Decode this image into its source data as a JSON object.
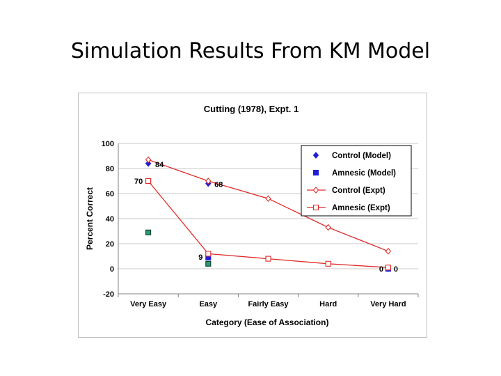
{
  "slide": {
    "title": "Simulation Results From KM Model"
  },
  "chart_data": {
    "type": "line",
    "title": "Cutting (1978), Expt. 1",
    "xlabel": "Category (Ease of Association)",
    "ylabel": "Percent Correct",
    "categories": [
      "Very Easy",
      "Easy",
      "Fairly Easy",
      "Hard",
      "Very Hard"
    ],
    "ylim": [
      -20,
      100
    ],
    "yticks": [
      100,
      80,
      60,
      40,
      20,
      0,
      -20
    ],
    "grid": true,
    "legend_position": "top-right",
    "series": [
      {
        "name": "Control (Model)",
        "kind": "points",
        "marker": "diamond-filled",
        "color": "#1f1fd6",
        "values": [
          84,
          68,
          null,
          null,
          0
        ]
      },
      {
        "name": "Amnesic (Model)",
        "kind": "points",
        "marker": "square-filled",
        "color": "#1f1fd6",
        "values": [
          70,
          9,
          null,
          null,
          0
        ]
      },
      {
        "name": "Control (Expt)",
        "kind": "line",
        "marker": "diamond-open",
        "color": "#e02a2a",
        "values": [
          87,
          70,
          56,
          33,
          14
        ]
      },
      {
        "name": "Amnesic (Expt)",
        "kind": "line",
        "marker": "square-open",
        "color": "#e02a2a",
        "values": [
          70,
          12,
          8,
          4,
          1
        ]
      }
    ],
    "extra_points": {
      "marker": "square-filled",
      "color": "#2e9a6e",
      "stroke": "#0b3d2a",
      "points": [
        {
          "x": "Very Easy",
          "y": 29
        },
        {
          "x": "Easy",
          "y": 4
        }
      ]
    },
    "data_labels": [
      {
        "text": "84",
        "x": "Very Easy",
        "y": 84
      },
      {
        "text": "70",
        "x": "Very Easy",
        "y": 70
      },
      {
        "text": "68",
        "x": "Easy",
        "y": 68
      },
      {
        "text": "9",
        "x": "Easy",
        "y": 9
      },
      {
        "text": "0",
        "x": "Very Hard",
        "y": 0
      },
      {
        "text": "0",
        "x": "Very Hard",
        "y": 0
      }
    ]
  }
}
